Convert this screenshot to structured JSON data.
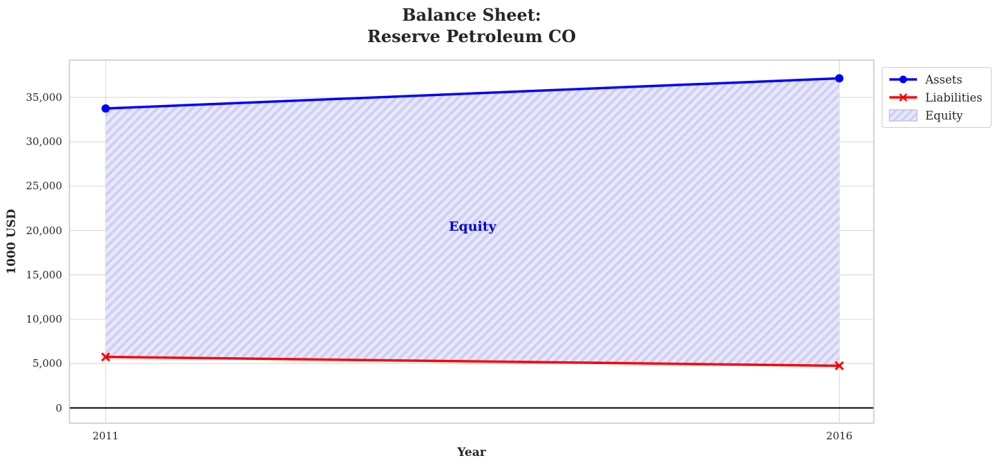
{
  "figure": {
    "title_line1": "Balance Sheet:",
    "title_line2": "Reserve Petroleum CO"
  },
  "chart_data": {
    "type": "line",
    "title": "Balance Sheet: Reserve Petroleum CO",
    "xlabel": "Year",
    "ylabel": "1000 USD",
    "x": [
      2011,
      2016
    ],
    "x_tick_labels": [
      "2011",
      "2016"
    ],
    "y_ticks": [
      0,
      5000,
      10000,
      15000,
      20000,
      25000,
      30000,
      35000
    ],
    "y_tick_labels": [
      "0",
      "5,000",
      "10,000",
      "15,000",
      "20,000",
      "25,000",
      "30,000",
      "35,000"
    ],
    "xlim": [
      2010.75,
      2016.24
    ],
    "ylim": [
      -1700,
      39200
    ],
    "grid": true,
    "zero_line": {
      "y": 0,
      "color": "#000000"
    },
    "series": [
      {
        "name": "Assets",
        "color": "#0000ff",
        "marker": "circle",
        "values": [
          33750,
          37150
        ]
      },
      {
        "name": "Liabilities",
        "color": "#ff0000",
        "marker": "x",
        "values": [
          5750,
          4750
        ]
      }
    ],
    "fill_between": {
      "name": "Equity",
      "between": [
        "Assets",
        "Liabilities"
      ],
      "face_color": "#e8e8fb",
      "hatch_color": "#cfcff3",
      "hatch": "//",
      "edge_color": "#b9b9e0"
    },
    "annotation": {
      "text": "Equity",
      "x": 2013.5,
      "y": 20400,
      "color": "#0000dd"
    },
    "legend": {
      "position": "outside upper right",
      "entries": [
        {
          "label": "Assets"
        },
        {
          "label": "Liabilities"
        },
        {
          "label": "Equity"
        }
      ]
    }
  }
}
